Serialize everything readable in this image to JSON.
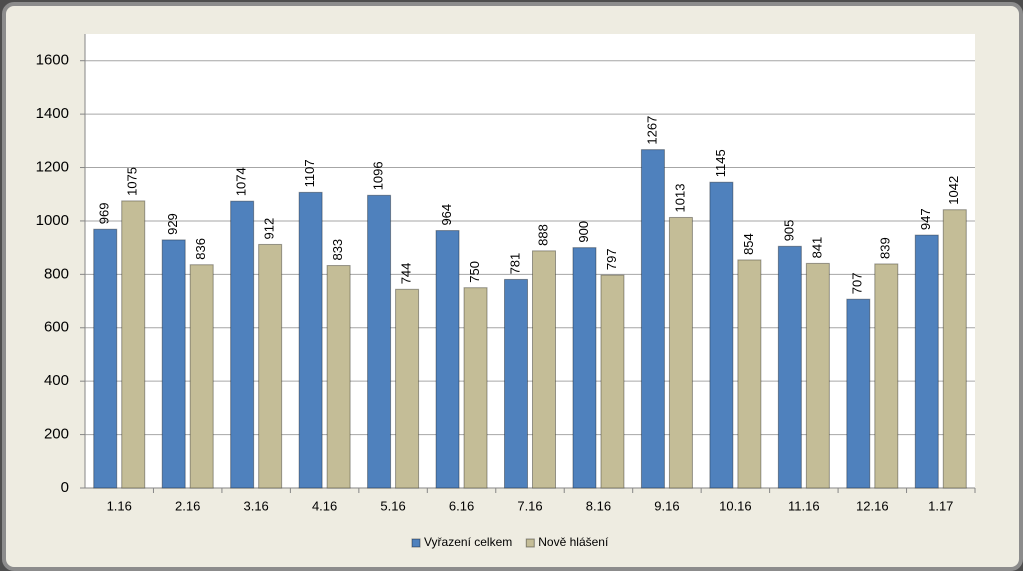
{
  "chart_data": {
    "type": "bar",
    "categories": [
      "1.16",
      "2.16",
      "3.16",
      "4.16",
      "5.16",
      "6.16",
      "7.16",
      "8.16",
      "9.16",
      "10.16",
      "11.16",
      "12.16",
      "1.17"
    ],
    "series": [
      {
        "name": "Vyřazení celkem",
        "color": "#4f81bd",
        "values": [
          969,
          929,
          1074,
          1107,
          1096,
          964,
          781,
          900,
          1267,
          1145,
          905,
          707,
          947
        ]
      },
      {
        "name": "Nově hlášení",
        "color": "#c4bd97",
        "values": [
          1075,
          836,
          912,
          833,
          744,
          750,
          888,
          797,
          1013,
          854,
          841,
          839,
          1042
        ]
      }
    ],
    "ylim": [
      0,
      1700
    ],
    "yticks": [
      0,
      200,
      400,
      600,
      800,
      1000,
      1200,
      1400,
      1600
    ],
    "grid": true,
    "legend": "bottom"
  }
}
